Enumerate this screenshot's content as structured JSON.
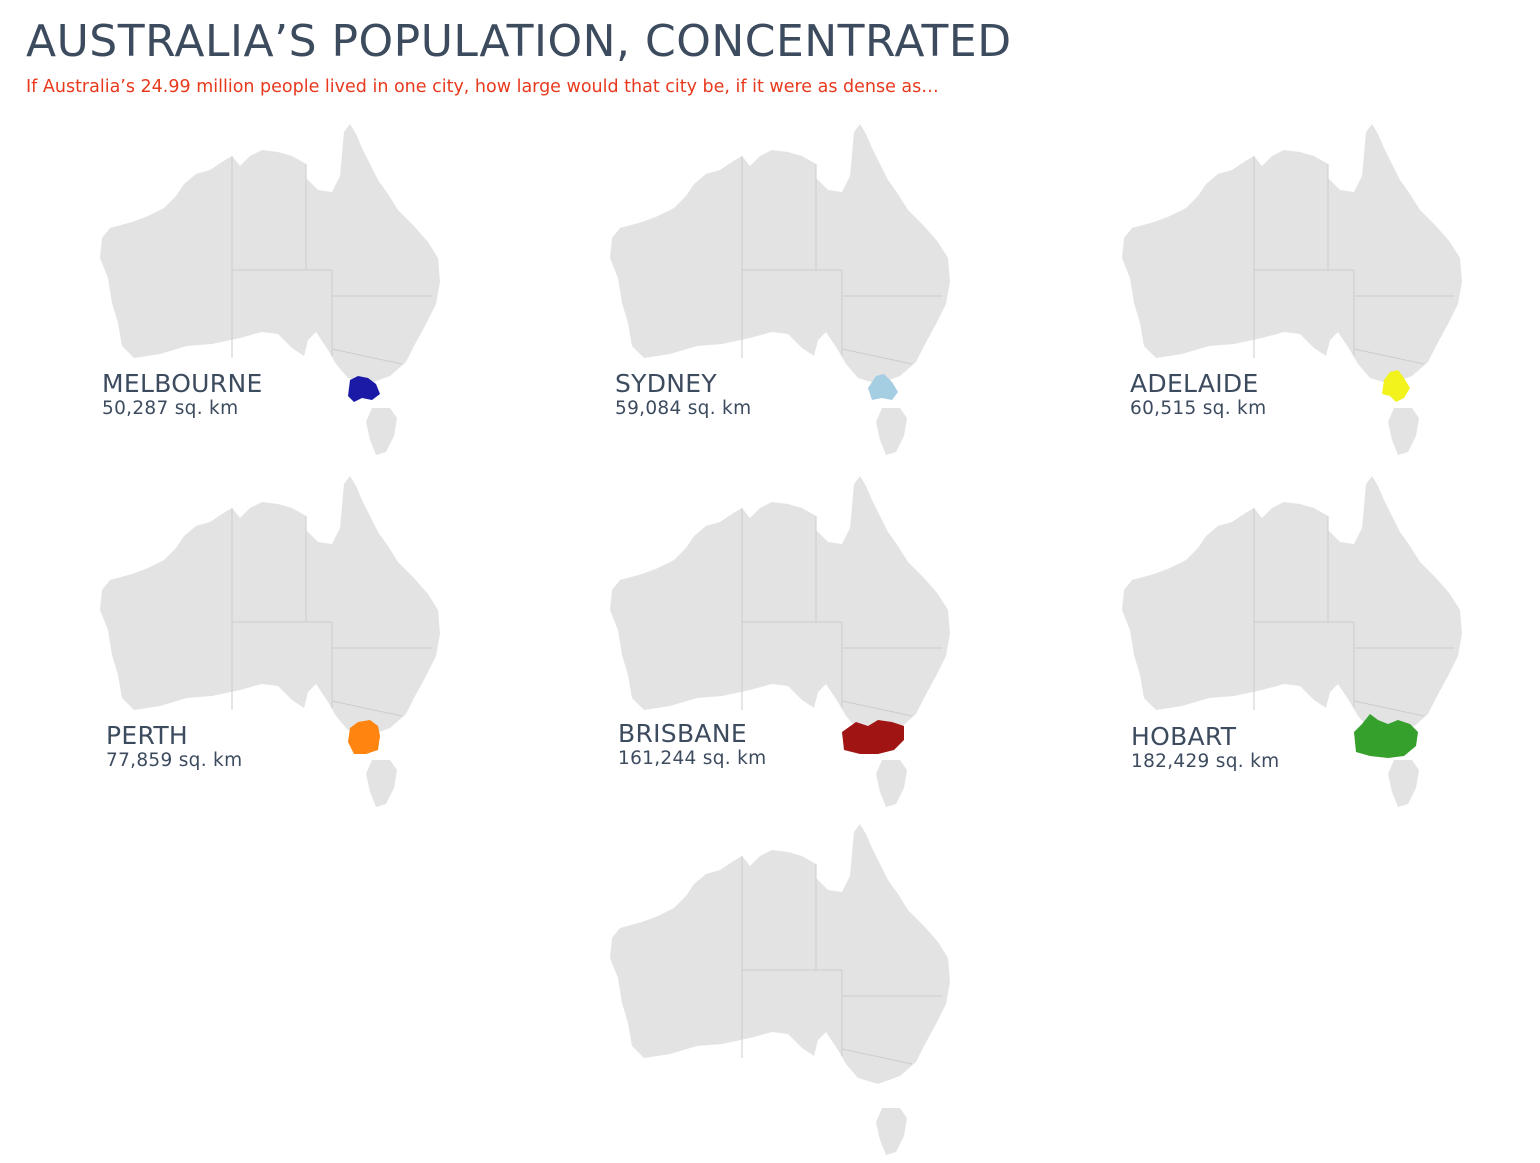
{
  "header": {
    "title": "AUSTRALIA’S POPULATION, CONCENTRATED",
    "subtitle": "If Australia’s 24.99 million people lived in one city, how large would that city be, if it were as dense as…"
  },
  "maps": [
    {
      "city": "MELBOURNE",
      "area": "50,287 sq. km",
      "color": "#1a1aa6"
    },
    {
      "city": "SYDNEY",
      "area": "59,084 sq. km",
      "color": "#a6cee3"
    },
    {
      "city": "ADELAIDE",
      "area": "60,515 sq. km",
      "color": "#f2f21c"
    },
    {
      "city": "PERTH",
      "area": "77,859 sq. km",
      "color": "#ff8410"
    },
    {
      "city": "BRISBANE",
      "area": "161,244 sq. km",
      "color": "#a01414"
    },
    {
      "city": "HOBART",
      "area": "182,429 sq. km",
      "color": "#35a02c"
    },
    {
      "city": "",
      "area": "",
      "color": ""
    }
  ]
}
